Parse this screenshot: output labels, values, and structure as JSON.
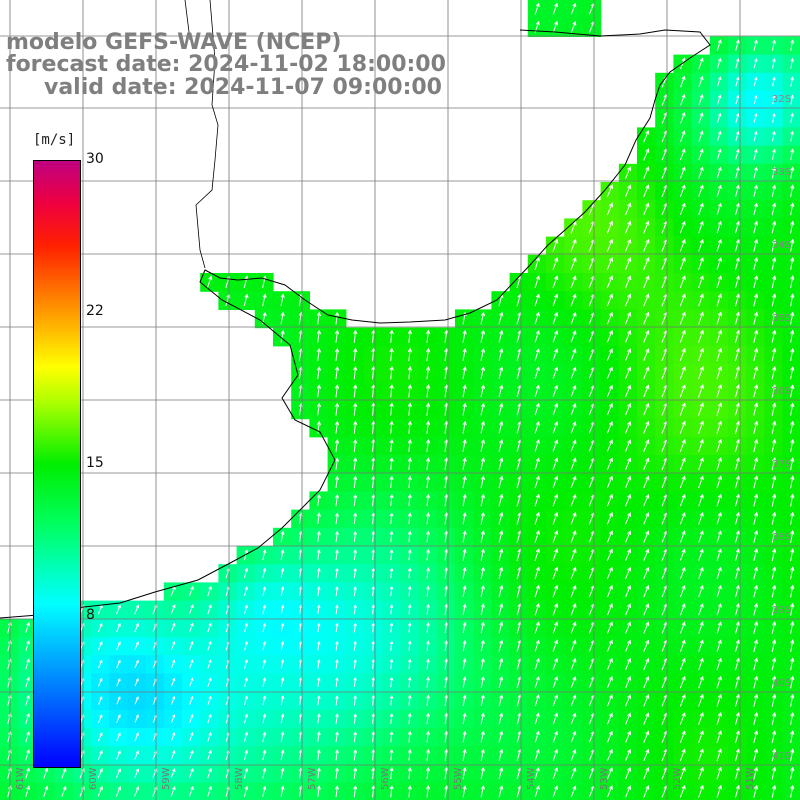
{
  "title": {
    "line1": "modelo GEFS-WAVE (NCEP)",
    "line2": "forecast date: 2024-11-02 18:00:00",
    "line3": "valid date: 2024-11-07 09:00:00"
  },
  "colorbar": {
    "unit": "[m/s]",
    "ticks": [
      "30",
      "22",
      "15",
      "8"
    ],
    "range": [
      0,
      30
    ]
  },
  "lon_labels": [
    "61W",
    "60W",
    "59W",
    "58W",
    "57W",
    "56W",
    "55W",
    "54W",
    "53W",
    "52W",
    "51W"
  ],
  "lat_labels": [
    "32S",
    "33S",
    "34S",
    "35S",
    "36S",
    "37S",
    "38S",
    "39S",
    "40S",
    "41S"
  ],
  "colors": {
    "title": "#7f7f7f",
    "land": "#ffffff",
    "grid": "#777777",
    "coast": "#000000",
    "arrows": "#ffffff"
  },
  "field": {
    "variable": "wind speed",
    "units": "m/s",
    "wind_direction": "from southwest"
  }
}
